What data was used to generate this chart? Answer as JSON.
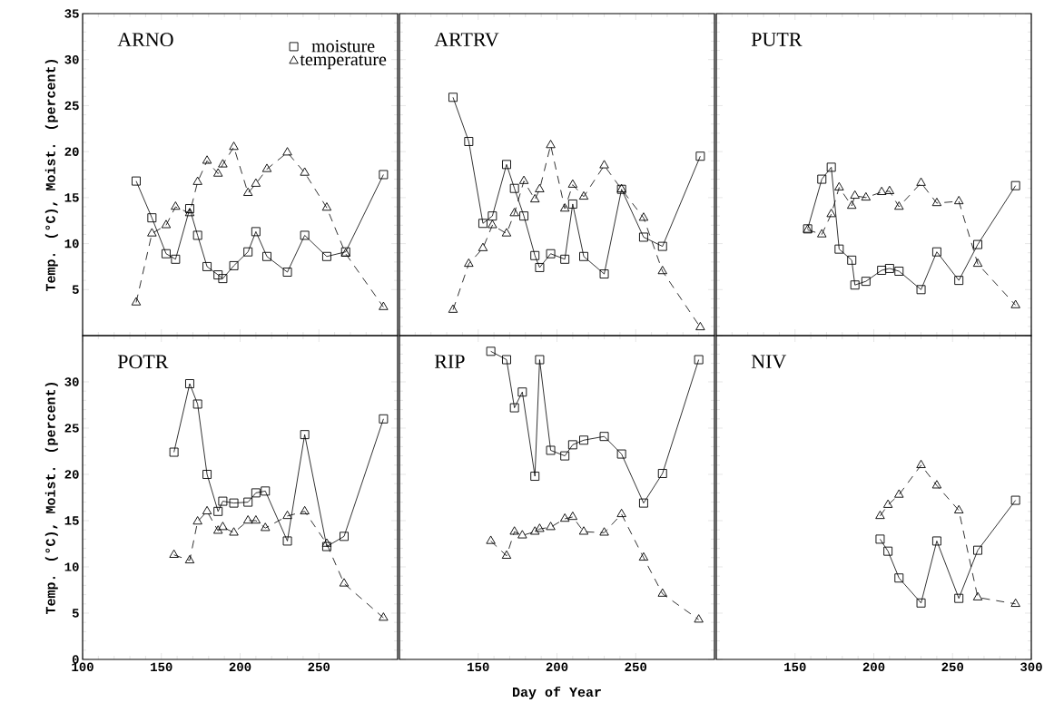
{
  "chart_data": [
    {
      "type": "line",
      "title": "ARNO",
      "ylabel": "Temp. (°C), Moist. (percent)",
      "x": [
        134,
        144,
        153,
        159,
        168,
        173,
        179,
        186,
        189,
        196,
        205,
        210,
        217,
        230,
        241,
        255,
        267,
        291
      ],
      "xlim": [
        100,
        300
      ],
      "ylim": [
        0,
        35
      ],
      "xticks": [
        100,
        150,
        200,
        250,
        300
      ],
      "yticks": [
        5,
        10,
        15,
        20,
        25,
        30,
        35
      ],
      "tick_labels": "y",
      "legend": "top right",
      "series": [
        {
          "name": "moisture",
          "color": "#000000",
          "marker": "square",
          "line_style": "solid",
          "values": [
            16.8,
            12.8,
            8.9,
            8.3,
            13.8,
            10.9,
            7.5,
            6.6,
            6.2,
            7.6,
            9.1,
            11.3,
            8.6,
            6.9,
            10.9,
            8.6,
            9.1,
            17.5
          ]
        },
        {
          "name": "temperature",
          "color": "#000000",
          "marker": "triangle",
          "line_style": "dashed",
          "values": [
            3.6,
            11.1,
            12.0,
            14.0,
            13.3,
            16.7,
            19.0,
            17.6,
            18.6,
            20.5,
            15.5,
            16.5,
            18.1,
            19.9,
            17.7,
            13.9,
            8.9,
            3.1
          ]
        }
      ]
    },
    {
      "type": "line",
      "title": "ARTRV",
      "x": [
        134,
        144,
        153,
        159,
        168,
        173,
        179,
        186,
        189,
        196,
        205,
        210,
        217,
        230,
        241,
        255,
        267,
        291
      ],
      "xlim": [
        100,
        300
      ],
      "ylim": [
        0,
        35
      ],
      "xticks": [
        100,
        150,
        200,
        250,
        300
      ],
      "yticks": [
        0,
        5,
        10,
        15,
        20,
        25,
        30,
        35
      ],
      "tick_labels": false,
      "series": [
        {
          "color": "#000000",
          "marker": "square",
          "line_style": "solid",
          "values": [
            25.9,
            21.1,
            12.2,
            13.0,
            18.6,
            16.0,
            13.0,
            8.7,
            7.4,
            8.9,
            8.3,
            14.3,
            8.6,
            6.7,
            15.9,
            10.7,
            9.7,
            19.5
          ]
        },
        {
          "color": "#000000",
          "marker": "triangle",
          "line_style": "dashed",
          "values": [
            2.8,
            7.8,
            9.5,
            12.0,
            11.1,
            13.3,
            16.8,
            14.8,
            15.9,
            20.7,
            13.8,
            16.4,
            15.1,
            18.5,
            15.9,
            12.8,
            7.0,
            0.9
          ]
        }
      ]
    },
    {
      "type": "line",
      "title": "PUTR",
      "x": [
        158,
        167,
        173,
        178,
        186,
        188,
        195,
        205,
        210,
        216,
        230,
        240,
        254,
        266,
        290
      ],
      "xlim": [
        100,
        300
      ],
      "ylim": [
        0,
        35
      ],
      "xticks": [
        100,
        150,
        200,
        250,
        300
      ],
      "yticks": [
        0,
        5,
        10,
        15,
        20,
        25,
        30,
        35
      ],
      "tick_labels": false,
      "series": [
        {
          "color": "#000000",
          "marker": "square",
          "line_style": "solid",
          "values": [
            11.6,
            17.0,
            18.3,
            9.4,
            8.2,
            5.5,
            5.9,
            7.1,
            7.3,
            7.0,
            5.0,
            9.1,
            6.0,
            9.9,
            16.3
          ]
        },
        {
          "color": "#000000",
          "marker": "triangle",
          "line_style": "dashed",
          "values": [
            11.5,
            11.0,
            13.2,
            16.1,
            14.1,
            15.2,
            15.0,
            15.6,
            15.7,
            14.0,
            16.6,
            14.4,
            14.6,
            7.8,
            3.3
          ]
        }
      ]
    },
    {
      "type": "line",
      "title": "POTR",
      "ylabel": "Temp. (°C), Moist. (percent)",
      "x": [
        158,
        168,
        173,
        179,
        186,
        189,
        196,
        205,
        210,
        216,
        230,
        241,
        255,
        266,
        291
      ],
      "xlim": [
        100,
        300
      ],
      "ylim": [
        0,
        35
      ],
      "xticks": [
        100,
        150,
        200,
        250
      ],
      "yticks": [
        0,
        5,
        10,
        15,
        20,
        25,
        30
      ],
      "series": [
        {
          "color": "#000000",
          "marker": "square",
          "line_style": "solid",
          "values": [
            22.4,
            29.8,
            27.6,
            20.0,
            16.0,
            17.1,
            16.9,
            17.0,
            18.0,
            18.2,
            12.8,
            24.3,
            12.2,
            13.3,
            26.0
          ]
        },
        {
          "color": "#000000",
          "marker": "triangle",
          "line_style": "dashed",
          "values": [
            11.3,
            10.7,
            14.9,
            16.0,
            13.9,
            14.3,
            13.7,
            15.0,
            15.0,
            14.2,
            15.5,
            16.0,
            12.5,
            8.2,
            4.5
          ]
        }
      ]
    },
    {
      "type": "line",
      "title": "RIP",
      "xlabel": "Day of Year",
      "x": [
        158,
        168,
        173,
        178,
        186,
        189,
        196,
        205,
        210,
        217,
        230,
        241,
        255,
        267,
        290
      ],
      "xlim": [
        100,
        300
      ],
      "ylim": [
        0,
        35
      ],
      "xticks": [
        150,
        200,
        250
      ],
      "yticks": [
        0,
        5,
        10,
        15,
        20,
        25,
        30,
        35
      ],
      "tick_labels": "x",
      "series": [
        {
          "color": "#000000",
          "marker": "square",
          "line_style": "solid",
          "values": [
            33.3,
            32.4,
            27.2,
            28.9,
            19.8,
            32.4,
            22.6,
            22.0,
            23.2,
            23.7,
            24.1,
            22.2,
            16.9,
            20.1,
            32.4
          ]
        },
        {
          "color": "#000000",
          "marker": "triangle",
          "line_style": "dashed",
          "values": [
            12.8,
            11.2,
            13.8,
            13.4,
            13.8,
            14.1,
            14.3,
            15.2,
            15.4,
            13.8,
            13.7,
            15.7,
            11.0,
            7.1,
            4.3
          ]
        }
      ]
    },
    {
      "type": "line",
      "title": "NIV",
      "x": [
        204,
        209,
        216,
        230,
        240,
        254,
        266,
        290
      ],
      "xlim": [
        100,
        300
      ],
      "ylim": [
        0,
        35
      ],
      "xticks": [
        150,
        200,
        250,
        300
      ],
      "yticks": [
        0,
        5,
        10,
        15,
        20,
        25,
        30,
        35
      ],
      "tick_labels": "x",
      "series": [
        {
          "color": "#000000",
          "marker": "square",
          "line_style": "solid",
          "values": [
            13.0,
            11.7,
            8.8,
            6.1,
            12.8,
            6.6,
            11.8,
            17.2
          ]
        },
        {
          "color": "#000000",
          "marker": "triangle",
          "line_style": "dashed",
          "values": [
            15.5,
            16.7,
            17.8,
            21.0,
            18.8,
            16.1,
            6.7,
            6.0
          ]
        }
      ]
    }
  ]
}
